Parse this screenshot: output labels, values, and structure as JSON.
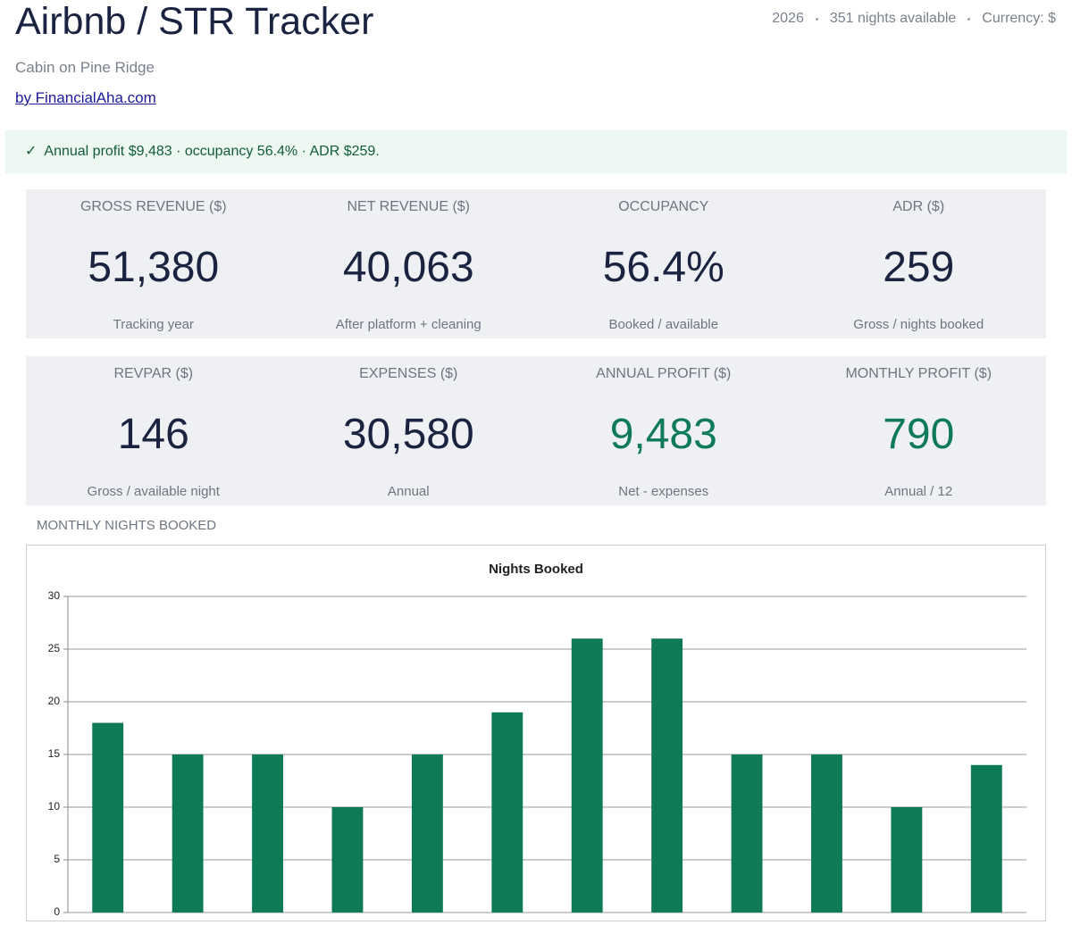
{
  "header": {
    "title": "Airbnb / STR Tracker",
    "subtitle": "Cabin on Pine Ridge",
    "link": "by FinancialAha.com",
    "meta": [
      "2026",
      "351 nights available",
      "Currency: $"
    ]
  },
  "banner": "✓  Annual profit $9,483 · occupancy 56.4% · ADR $259.",
  "kpis": [
    {
      "label": "GROSS REVENUE ($)",
      "value": "51,380",
      "note": "Tracking year"
    },
    {
      "label": "NET REVENUE ($)",
      "value": "40,063",
      "note": "After platform + cleaning"
    },
    {
      "label": "OCCUPANCY",
      "value": "56.4%",
      "note": "Booked / available"
    },
    {
      "label": "ADR ($)",
      "value": "259",
      "note": "Gross / nights booked"
    },
    {
      "label": "REVPAR ($)",
      "value": "146",
      "note": "Gross / available night"
    },
    {
      "label": "EXPENSES ($)",
      "value": "30,580",
      "note": "Annual"
    },
    {
      "label": "ANNUAL PROFIT ($)",
      "value": "9,483",
      "note": "Net - expenses",
      "positive": true
    },
    {
      "label": "MONTHLY PROFIT ($)",
      "value": "790",
      "note": "Annual / 12",
      "positive": true
    }
  ],
  "section_label": "MONTHLY NIGHTS BOOKED",
  "chart_data": {
    "type": "bar",
    "title": "Nights Booked",
    "values": [
      18,
      15,
      15,
      10,
      15,
      19,
      26,
      26,
      15,
      15,
      10,
      14
    ],
    "color": "#0e7a57",
    "ylim": [
      0,
      30
    ],
    "yticks": [
      0,
      5,
      10,
      15,
      20,
      25,
      30
    ],
    "grid": true
  }
}
